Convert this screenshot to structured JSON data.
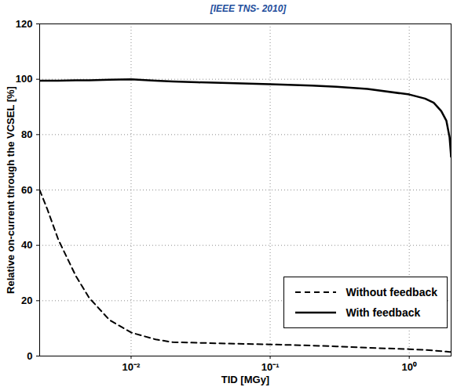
{
  "chart_data": {
    "type": "line",
    "title": "[IEEE TNS- 2010]",
    "x_label": "TID [MGy]",
    "y_label": "Relative on-current through the VCSEL [%]",
    "log": "x",
    "grid": true,
    "legend": "lower right",
    "x": [
      0.0022,
      0.0025,
      0.003,
      0.004,
      0.005,
      0.007,
      0.01,
      0.015,
      0.02,
      0.03,
      0.05,
      0.1,
      0.2,
      0.3,
      0.5,
      1,
      1.3,
      1.5,
      1.7,
      1.85,
      1.95,
      2
    ],
    "series": [
      {
        "name": "Without feedback",
        "color": "#000000",
        "line_style": "dashed",
        "values": [
          60,
          53,
          42,
          29,
          21,
          13,
          8.5,
          6,
          5,
          4.8,
          4.5,
          4.2,
          3.8,
          3.5,
          3,
          2.5,
          2.2,
          2,
          1.8,
          1.6,
          1.5,
          1.5
        ]
      },
      {
        "name": "With feedback",
        "color": "#000000",
        "line_style": "solid",
        "values": [
          99.5,
          99.5,
          99.5,
          99.6,
          99.6,
          99.8,
          100,
          99.5,
          99.2,
          98.9,
          98.6,
          98.2,
          97.7,
          97.3,
          96.5,
          94.5,
          93,
          91.5,
          88.5,
          85,
          79,
          72
        ]
      }
    ],
    "xlim": [
      0.0022,
      2
    ],
    "xticks": [
      {
        "value": 0.01,
        "label": "10⁻²"
      },
      {
        "value": 0.1,
        "label": "10⁻¹"
      },
      {
        "value": 1,
        "label": "10⁰"
      }
    ],
    "ylim": [
      0,
      120
    ],
    "yticks": [
      0,
      20,
      40,
      60,
      80,
      100,
      120
    ]
  }
}
